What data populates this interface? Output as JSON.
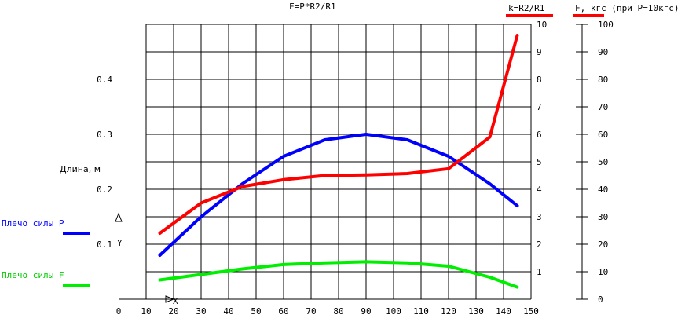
{
  "chart_data": {
    "type": "line",
    "title": "F=P*R2/R1",
    "x": [
      15,
      30,
      45,
      60,
      75,
      90,
      105,
      120,
      135,
      145
    ],
    "xlim": [
      0,
      150
    ],
    "x_ticks": [
      "0",
      "10",
      "20",
      "30",
      "40",
      "50",
      "60",
      "70",
      "80",
      "90",
      "100",
      "110",
      "120",
      "130",
      "140",
      "150"
    ],
    "left_axis": {
      "label": "Длина, м",
      "ylim": [
        0,
        0.5
      ],
      "ticks": [
        "0.1",
        "0.2",
        "0.3",
        "0.4"
      ]
    },
    "k_axis": {
      "label": "k=R2/R1",
      "ylim": [
        0,
        10
      ],
      "ticks": [
        "1",
        "2",
        "3",
        "4",
        "5",
        "6",
        "7",
        "8",
        "9",
        "10"
      ]
    },
    "f_axis": {
      "label": "F, кгс (при P=10кгс)",
      "ylim": [
        0,
        100
      ],
      "ticks": [
        "0",
        "10",
        "20",
        "30",
        "40",
        "50",
        "60",
        "70",
        "80",
        "90",
        "100"
      ]
    },
    "series": [
      {
        "name": "Плечо силы P",
        "color": "#0000ff",
        "axis": "left",
        "values": [
          0.08,
          0.15,
          0.21,
          0.26,
          0.29,
          0.3,
          0.29,
          0.26,
          0.21,
          0.17
        ]
      },
      {
        "name": "Плечо силы F",
        "color": "#00ee00",
        "axis": "left",
        "values": [
          0.035,
          0.045,
          0.055,
          0.063,
          0.066,
          0.068,
          0.066,
          0.06,
          0.04,
          0.022
        ]
      },
      {
        "name": "k=R2/R1",
        "color": "#ff0000",
        "axis": "k",
        "x": [
          15,
          30,
          45,
          60,
          75,
          90,
          105,
          120,
          135,
          145
        ],
        "values": [
          2.4,
          3.5,
          4.1,
          4.35,
          4.5,
          4.52,
          4.57,
          4.75,
          5.9,
          9.6
        ]
      }
    ],
    "grid": true,
    "origin_labels": {
      "x": "X",
      "y": "Y"
    }
  }
}
